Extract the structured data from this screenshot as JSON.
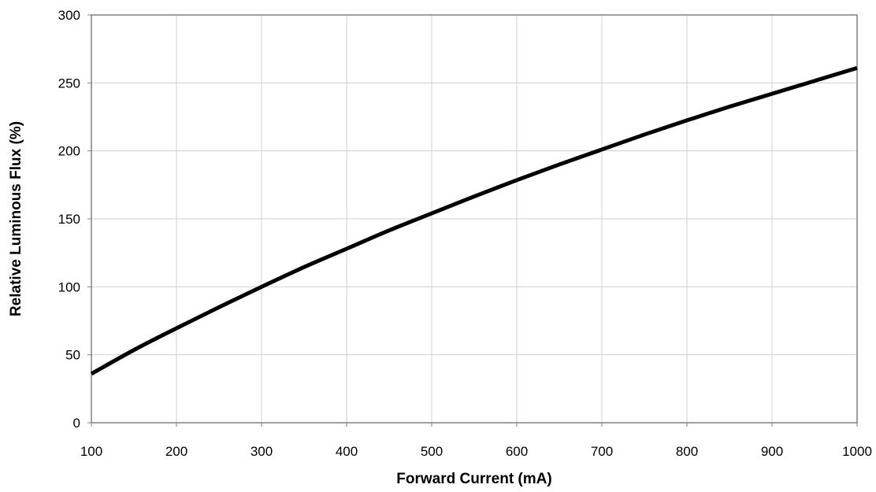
{
  "chart_data": {
    "type": "line",
    "title": "",
    "xlabel": "Forward Current (mA)",
    "ylabel": "Relative Luminous Flux (%)",
    "xlim": [
      100,
      1000
    ],
    "ylim": [
      0,
      300
    ],
    "x_ticks": [
      100,
      200,
      300,
      400,
      500,
      600,
      700,
      800,
      900,
      1000
    ],
    "y_ticks": [
      0,
      50,
      100,
      150,
      200,
      250,
      300
    ],
    "grid": true,
    "legend": "none",
    "series": [
      {
        "color": "#000000",
        "x": [
          100,
          150,
          200,
          250,
          300,
          350,
          400,
          450,
          500,
          550,
          600,
          650,
          700,
          750,
          800,
          850,
          900,
          950,
          1000
        ],
        "y": [
          36,
          53.5,
          69.5,
          85,
          100,
          114.5,
          128,
          141.5,
          154,
          166.5,
          178.5,
          190,
          201,
          212,
          222.5,
          232.5,
          242,
          251.5,
          261
        ]
      }
    ]
  }
}
